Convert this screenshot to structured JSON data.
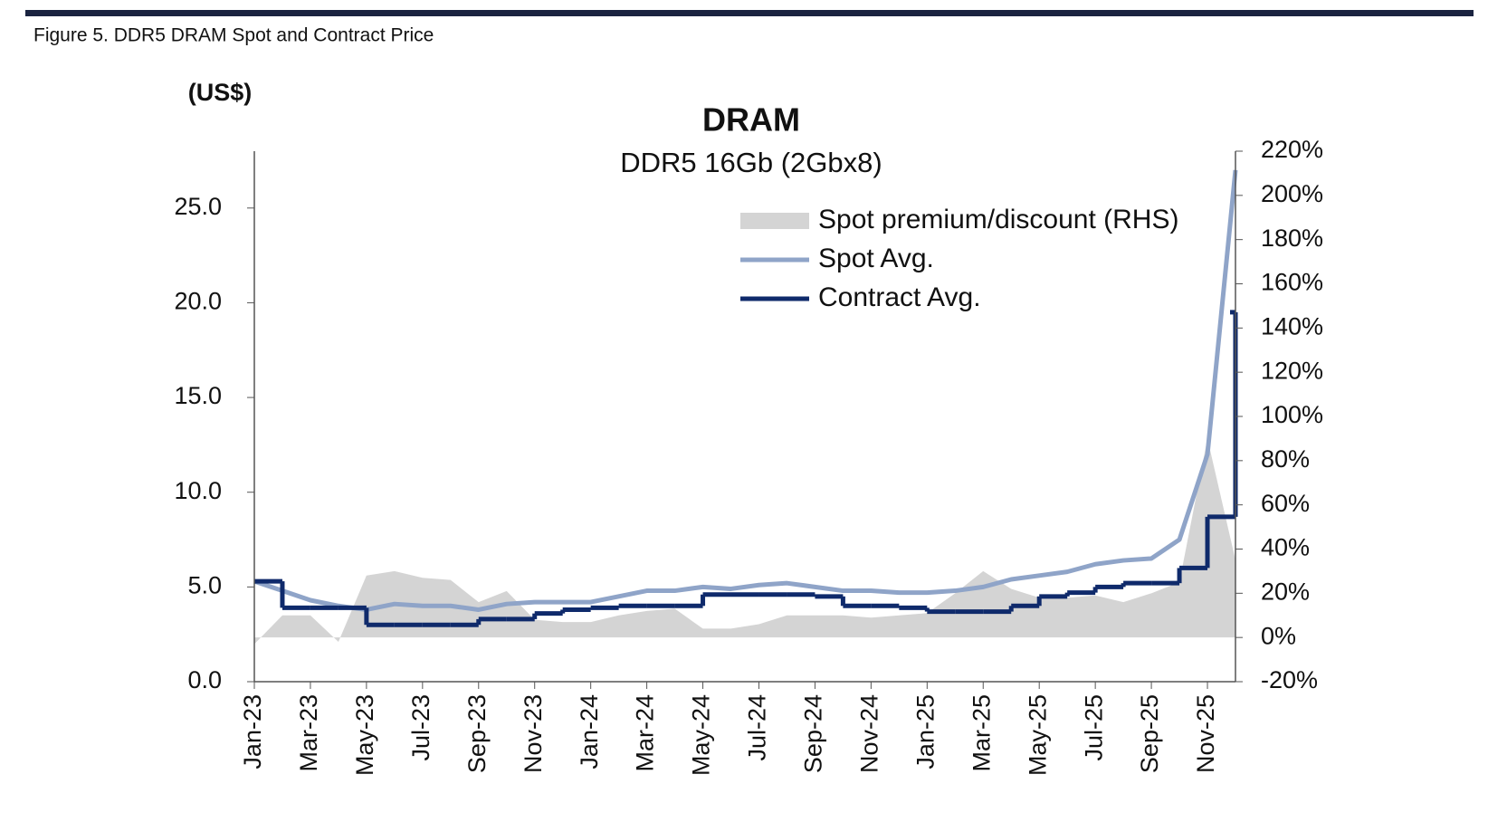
{
  "figure_caption": "Figure 5. DDR5 DRAM Spot and Contract Price",
  "chart_data": {
    "type": "line",
    "title": "DRAM",
    "subtitle": "DDR5 16Gb (2Gbx8)",
    "ylabel": "(US$)",
    "categories": [
      "Jan-23",
      null,
      "Mar-23",
      null,
      "May-23",
      null,
      "Jul-23",
      null,
      "Sep-23",
      null,
      "Nov-23",
      null,
      "Jan-24",
      null,
      "Mar-24",
      null,
      "May-24",
      null,
      "Jul-24",
      null,
      "Sep-24",
      null,
      "Nov-24",
      null,
      "Jan-25",
      null,
      "Mar-25",
      null,
      "May-25",
      null,
      "Jul-25",
      null,
      "Sep-25",
      null,
      "Nov-25",
      null
    ],
    "series": [
      {
        "name": "Spot premium/discount (RHS)",
        "kind": "area",
        "axis": "y2",
        "color": "#d4d4d4",
        "values": [
          -3,
          10,
          10,
          -2,
          28,
          30,
          27,
          26,
          16,
          21,
          8,
          7,
          7,
          10,
          12,
          13,
          4,
          4,
          6,
          10,
          10,
          10,
          9,
          10,
          11,
          20,
          30,
          22,
          18,
          18,
          19,
          16,
          20,
          25,
          90,
          35
        ]
      },
      {
        "name": "Spot Avg.",
        "kind": "line",
        "color": "#8fa4c8",
        "values": [
          5.3,
          4.8,
          4.3,
          4.0,
          3.8,
          4.1,
          4.0,
          4.0,
          3.8,
          4.1,
          4.2,
          4.2,
          4.2,
          4.5,
          4.8,
          4.8,
          5.0,
          4.9,
          5.1,
          5.2,
          5.0,
          4.8,
          4.8,
          4.7,
          4.7,
          4.8,
          5.0,
          5.4,
          5.6,
          5.8,
          6.2,
          6.4,
          6.5,
          7.5,
          12.0,
          27.0
        ]
      },
      {
        "name": "Contract Avg.",
        "kind": "step",
        "color": "#0f2a6b",
        "values": [
          5.3,
          3.9,
          3.9,
          3.9,
          3.0,
          3.0,
          3.0,
          3.0,
          3.3,
          3.3,
          3.6,
          3.8,
          3.9,
          4.0,
          4.0,
          4.0,
          4.6,
          4.6,
          4.6,
          4.6,
          4.5,
          4.0,
          4.0,
          3.9,
          3.7,
          3.7,
          3.7,
          4.0,
          4.5,
          4.7,
          5.0,
          5.2,
          5.2,
          6.0,
          8.7,
          19.5
        ]
      }
    ],
    "ylim": [
      0,
      28
    ],
    "yticks": [
      {
        "value": 0,
        "label": "0.0"
      },
      {
        "value": 5,
        "label": "5.0"
      },
      {
        "value": 10,
        "label": "10.0"
      },
      {
        "value": 15,
        "label": "15.0"
      },
      {
        "value": 20,
        "label": "20.0"
      },
      {
        "value": 25,
        "label": "25.0"
      }
    ],
    "y2lim": [
      -20,
      220
    ],
    "y2ticks": [
      {
        "value": -20,
        "label": "-20%"
      },
      {
        "value": 0,
        "label": "0%"
      },
      {
        "value": 20,
        "label": "20%"
      },
      {
        "value": 40,
        "label": "40%"
      },
      {
        "value": 60,
        "label": "60%"
      },
      {
        "value": 80,
        "label": "80%"
      },
      {
        "value": 100,
        "label": "100%"
      },
      {
        "value": 120,
        "label": "120%"
      },
      {
        "value": 140,
        "label": "140%"
      },
      {
        "value": 160,
        "label": "160%"
      },
      {
        "value": 180,
        "label": "180%"
      },
      {
        "value": 200,
        "label": "200%"
      },
      {
        "value": 220,
        "label": "220%"
      }
    ],
    "grid": false,
    "legend": "top-right"
  }
}
